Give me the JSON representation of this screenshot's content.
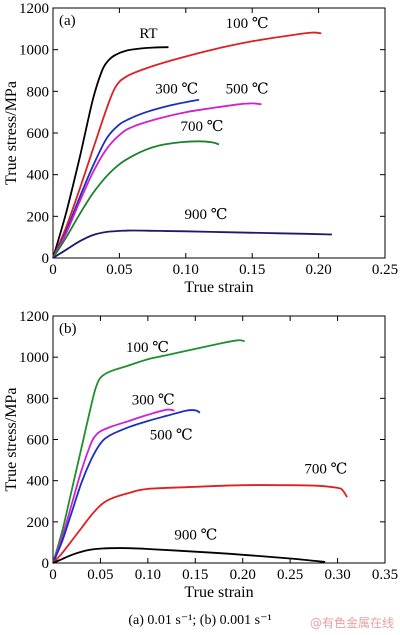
{
  "chart_data": [
    {
      "type": "line",
      "panel_label": "(a)",
      "xlabel": "True strain",
      "ylabel": "True stress/MPa",
      "xlim": [
        0,
        0.25
      ],
      "ylim": [
        0,
        1200
      ],
      "xticks": [
        "0",
        "0.05",
        "0.10",
        "0.15",
        "0.20",
        "0.25"
      ],
      "yticks": [
        "0",
        "200",
        "400",
        "600",
        "800",
        "1000",
        "1200"
      ],
      "grid": false,
      "series": [
        {
          "name": "RT",
          "color": "#000000",
          "x": [
            0,
            0.01,
            0.02,
            0.03,
            0.037,
            0.042,
            0.047,
            0.055,
            0.065,
            0.075,
            0.087
          ],
          "y": [
            0,
            220,
            480,
            760,
            900,
            950,
            975,
            995,
            1005,
            1010,
            1012
          ]
        },
        {
          "name": "100 ℃",
          "color": "#e02020",
          "x": [
            0,
            0.01,
            0.02,
            0.03,
            0.04,
            0.047,
            0.055,
            0.07,
            0.09,
            0.12,
            0.15,
            0.18,
            0.195,
            0.202
          ],
          "y": [
            0,
            150,
            330,
            520,
            710,
            820,
            870,
            910,
            950,
            1000,
            1040,
            1070,
            1082,
            1078
          ]
        },
        {
          "name": "300 ℃",
          "color": "#1a2fbf",
          "x": [
            0,
            0.01,
            0.02,
            0.03,
            0.04,
            0.048,
            0.055,
            0.07,
            0.09,
            0.11
          ],
          "y": [
            0,
            130,
            290,
            440,
            570,
            630,
            660,
            700,
            735,
            760
          ]
        },
        {
          "name": "500 ℃",
          "color": "#d020d0",
          "x": [
            0,
            0.01,
            0.02,
            0.03,
            0.04,
            0.05,
            0.06,
            0.08,
            0.1,
            0.12,
            0.14,
            0.15,
            0.157
          ],
          "y": [
            0,
            120,
            270,
            410,
            520,
            590,
            630,
            670,
            700,
            720,
            738,
            742,
            738
          ]
        },
        {
          "name": "700 ℃",
          "color": "#1f7f2f",
          "x": [
            0,
            0.01,
            0.02,
            0.03,
            0.04,
            0.05,
            0.06,
            0.07,
            0.08,
            0.095,
            0.11,
            0.12,
            0.125
          ],
          "y": [
            0,
            100,
            210,
            310,
            390,
            450,
            490,
            520,
            540,
            555,
            560,
            555,
            545
          ]
        },
        {
          "name": "900 ℃",
          "color": "#1a1a6e",
          "x": [
            0,
            0.01,
            0.02,
            0.03,
            0.04,
            0.05,
            0.06,
            0.08,
            0.1,
            0.13,
            0.16,
            0.19,
            0.21
          ],
          "y": [
            0,
            40,
            80,
            110,
            125,
            130,
            132,
            130,
            128,
            124,
            120,
            116,
            113
          ]
        }
      ],
      "labels": [
        {
          "series": "RT",
          "text": "RT",
          "x": 0.065,
          "y": 1055
        },
        {
          "series": "100 ℃",
          "text": "100 ℃",
          "x": 0.13,
          "y": 1105
        },
        {
          "series": "300 ℃",
          "text": "300 ℃",
          "x": 0.077,
          "y": 790
        },
        {
          "series": "500 ℃",
          "text": "500 ℃",
          "x": 0.13,
          "y": 790
        },
        {
          "series": "700 ℃",
          "text": "700 ℃",
          "x": 0.096,
          "y": 610
        },
        {
          "series": "900 ℃",
          "text": "900 ℃",
          "x": 0.099,
          "y": 188
        }
      ]
    },
    {
      "type": "line",
      "panel_label": "(b)",
      "xlabel": "True strain",
      "ylabel": "True stress/MPa",
      "xlim": [
        0,
        0.35
      ],
      "ylim": [
        0,
        1200
      ],
      "xticks": [
        "0",
        "0.05",
        "0.10",
        "0.15",
        "0.20",
        "0.25",
        "0.30",
        "0.35"
      ],
      "yticks": [
        "0",
        "200",
        "400",
        "600",
        "800",
        "1000",
        "1200"
      ],
      "grid": false,
      "series": [
        {
          "name": "100 ℃",
          "color": "#1f8f2f",
          "x": [
            0,
            0.01,
            0.02,
            0.03,
            0.04,
            0.045,
            0.05,
            0.06,
            0.08,
            0.1,
            0.12,
            0.15,
            0.18,
            0.195,
            0.202
          ],
          "y": [
            0,
            160,
            360,
            560,
            760,
            850,
            900,
            930,
            960,
            990,
            1010,
            1040,
            1070,
            1082,
            1078
          ]
        },
        {
          "name": "300 ℃",
          "color": "#d020d0",
          "x": [
            0,
            0.01,
            0.02,
            0.03,
            0.04,
            0.045,
            0.05,
            0.06,
            0.08,
            0.1,
            0.12,
            0.128
          ],
          "y": [
            0,
            130,
            290,
            450,
            580,
            620,
            640,
            660,
            690,
            720,
            745,
            740
          ]
        },
        {
          "name": "500 ℃",
          "color": "#1a2fbf",
          "x": [
            0,
            0.01,
            0.02,
            0.03,
            0.04,
            0.05,
            0.06,
            0.08,
            0.1,
            0.12,
            0.14,
            0.15,
            0.155
          ],
          "y": [
            0,
            110,
            250,
            390,
            500,
            580,
            620,
            660,
            690,
            715,
            740,
            742,
            730
          ]
        },
        {
          "name": "700 ℃",
          "color": "#e02020",
          "x": [
            0,
            0.01,
            0.02,
            0.03,
            0.04,
            0.05,
            0.06,
            0.08,
            0.1,
            0.15,
            0.2,
            0.25,
            0.28,
            0.3,
            0.305,
            0.31
          ],
          "y": [
            0,
            50,
            110,
            170,
            230,
            280,
            310,
            340,
            360,
            370,
            378,
            378,
            375,
            365,
            355,
            320
          ]
        },
        {
          "name": "900 ℃",
          "color": "#000000",
          "x": [
            0,
            0.01,
            0.02,
            0.03,
            0.04,
            0.05,
            0.06,
            0.08,
            0.1,
            0.15,
            0.2,
            0.25,
            0.287
          ],
          "y": [
            0,
            20,
            40,
            55,
            65,
            70,
            72,
            72,
            68,
            55,
            40,
            22,
            5
          ]
        }
      ],
      "labels": [
        {
          "series": "100 ℃",
          "text": "100 ℃",
          "x": 0.077,
          "y": 1025
        },
        {
          "series": "300 ℃",
          "text": "300 ℃",
          "x": 0.083,
          "y": 770
        },
        {
          "series": "500 ℃",
          "text": "500 ℃",
          "x": 0.102,
          "y": 600
        },
        {
          "series": "700 ℃",
          "text": "700 ℃",
          "x": 0.265,
          "y": 435
        },
        {
          "series": "900 ℃",
          "text": "900 ℃",
          "x": 0.128,
          "y": 115
        }
      ]
    }
  ],
  "caption": "(a) 0.01 s⁻¹; (b) 0.001 s⁻¹",
  "watermark": "@有色金属在线"
}
